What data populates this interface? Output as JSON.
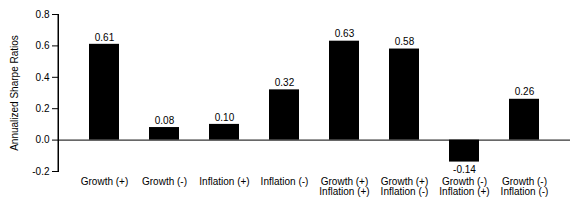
{
  "chart_data": {
    "type": "bar",
    "y_label": "Annualized Sharpe Ratios",
    "categories": [
      "Growth (+)",
      "Growth (-)",
      "Inflation (+)",
      "Inflation (-)",
      "Growth (+)\nInflation (+)",
      "Growth (+)\nInflation (-)",
      "Growth (-)\nInflation (+)",
      "Growth (-)\nInflation (-)"
    ],
    "values": [
      0.61,
      0.08,
      0.1,
      0.32,
      0.63,
      0.58,
      -0.14,
      0.26
    ],
    "value_labels": [
      "0.61",
      "0.08",
      "0.10",
      "0.32",
      "0.63",
      "0.58",
      "-0.14",
      "0.26"
    ],
    "color": "#000000",
    "ylim": [
      -0.2,
      0.8
    ],
    "yticks": [
      -0.2,
      {
        "value": 0,
        "label": "0.0"
      },
      0.2,
      0.4,
      0.6,
      0.8
    ],
    "grid": false,
    "data_labels": true
  }
}
